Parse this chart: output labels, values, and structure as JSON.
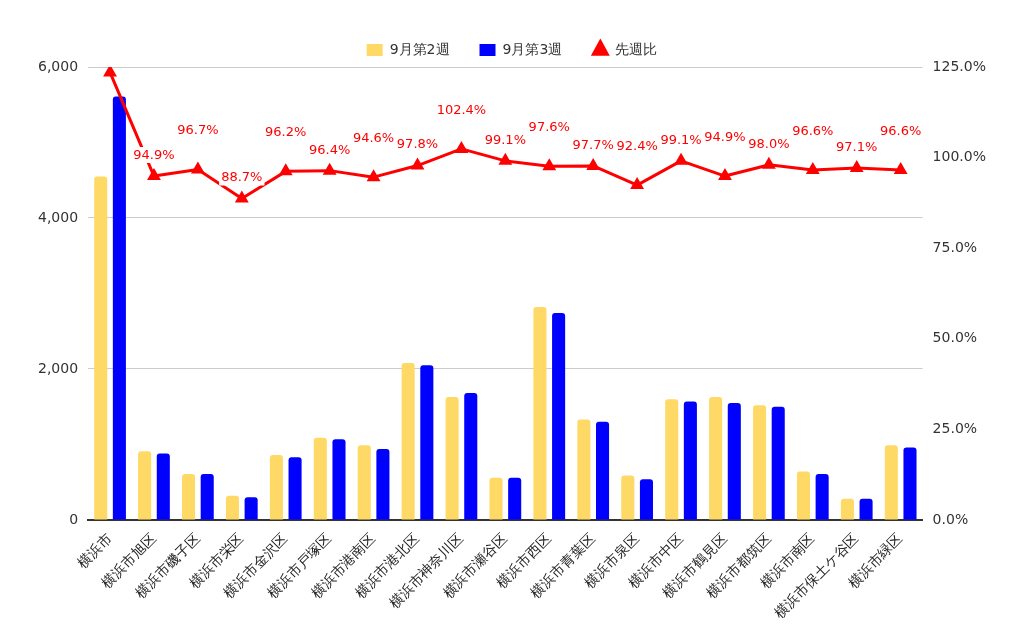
{
  "chart_data": {
    "type": "bar",
    "categories": [
      "横浜市",
      "横浜市旭区",
      "横浜市磯子区",
      "横浜市栄区",
      "横浜市金沢区",
      "横浜市戸塚区",
      "横浜市港南区",
      "横浜市港北区",
      "横浜市神奈川区",
      "横浜市瀬谷区",
      "横浜市西区",
      "横浜市青葉区",
      "横浜市泉区",
      "横浜市中区",
      "横浜市鶴見区",
      "横浜市都筑区",
      "横浜市南区",
      "横浜市保土ケ谷区",
      "横浜市緑区"
    ],
    "series": [
      {
        "name": "9月第2週",
        "color": "#ffd966",
        "values": [
          4550,
          910,
          610,
          320,
          860,
          1090,
          990,
          2080,
          1630,
          560,
          2820,
          1330,
          590,
          1600,
          1630,
          1520,
          640,
          280,
          990
        ]
      },
      {
        "name": "9月第3週",
        "color": "#0000ff",
        "values": [
          5610,
          880,
          610,
          300,
          830,
          1070,
          940,
          2050,
          1680,
          560,
          2740,
          1300,
          540,
          1570,
          1550,
          1500,
          610,
          280,
          960
        ]
      },
      {
        "name": "先週比",
        "type": "line",
        "axis": "y2",
        "color": "#ff0000",
        "marker": "triangle",
        "values": [
          123.5,
          94.9,
          96.7,
          88.7,
          96.2,
          96.4,
          94.6,
          97.8,
          102.4,
          99.1,
          97.6,
          97.7,
          92.4,
          99.1,
          94.9,
          98.0,
          96.6,
          97.1,
          96.6
        ],
        "value_labels": [
          null,
          "94.9%",
          "96.7%",
          "88.7%",
          "96.2%",
          "96.4%",
          "94.6%",
          "97.8%",
          "102.4%",
          "99.1%",
          "97.6%",
          "97.7%",
          "92.4%",
          "99.1%",
          "94.9%",
          "98.0%",
          "96.6%",
          "97.1%",
          "96.6%"
        ]
      }
    ],
    "ylim": [
      0,
      6000
    ],
    "yticks": [
      {
        "value": 0,
        "label": "0"
      },
      {
        "value": 2000,
        "label": "2,000"
      },
      {
        "value": 4000,
        "label": "4,000"
      },
      {
        "value": 6000,
        "label": "6,000"
      }
    ],
    "y2lim": [
      0,
      125
    ],
    "y2ticks": [
      {
        "value": 0,
        "label": "0.0%"
      },
      {
        "value": 25,
        "label": "25.0%"
      },
      {
        "value": 50,
        "label": "50.0%"
      },
      {
        "value": 75,
        "label": "75.0%"
      },
      {
        "value": 100,
        "label": "100.0%"
      },
      {
        "value": 125,
        "label": "125.0%"
      }
    ],
    "grid": "y",
    "legend": "top"
  }
}
